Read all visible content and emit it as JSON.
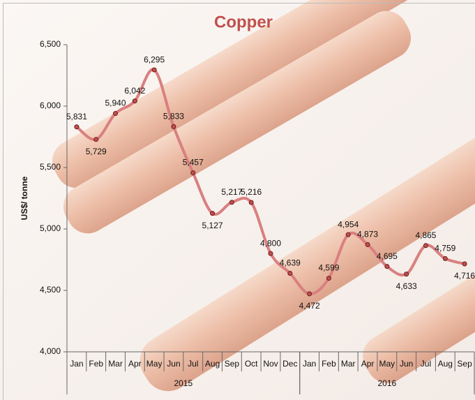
{
  "chart_data": {
    "type": "line",
    "title": "Copper",
    "y_label": "US$/ tonne",
    "category_groups": [
      {
        "name": "2015",
        "categories": [
          "Jan",
          "Feb",
          "Mar",
          "Apr",
          "May",
          "Jun",
          "Jul",
          "Aug",
          "Sep",
          "Oct",
          "Nov",
          "Dec"
        ]
      },
      {
        "name": "2016",
        "categories": [
          "Jan",
          "Feb",
          "Mar",
          "Apr",
          "May",
          "Jun",
          "Jul",
          "Aug",
          "Sep"
        ]
      }
    ],
    "values": [
      5831,
      5729,
      5940,
      6042,
      6295,
      5833,
      5457,
      5127,
      5217,
      5216,
      4800,
      4639,
      4472,
      4599,
      4954,
      4873,
      4695,
      4633,
      4865,
      4759,
      4716
    ],
    "value_labels": [
      "5,831",
      "5,729",
      "5,940",
      "6,042",
      "6,295",
      "5,833",
      "5,457",
      "5,127",
      "5,217",
      "5,216",
      "4,800",
      "4,639",
      "4,472",
      "4,599",
      "4,954",
      "4,873",
      "4,695",
      "4,633",
      "4,865",
      "4,759",
      "4,716"
    ],
    "color": "#d98080",
    "marker_color": "#c0504d",
    "ylim": [
      4000,
      6500
    ],
    "yticks": [
      {
        "value": 4000,
        "label": "4,000"
      },
      {
        "value": 4500,
        "label": "4,500"
      },
      {
        "value": 5000,
        "label": "5,000"
      },
      {
        "value": 5500,
        "label": "5,500"
      },
      {
        "value": 6000,
        "label": "6,000"
      },
      {
        "value": 6500,
        "label": "6,500"
      }
    ]
  }
}
